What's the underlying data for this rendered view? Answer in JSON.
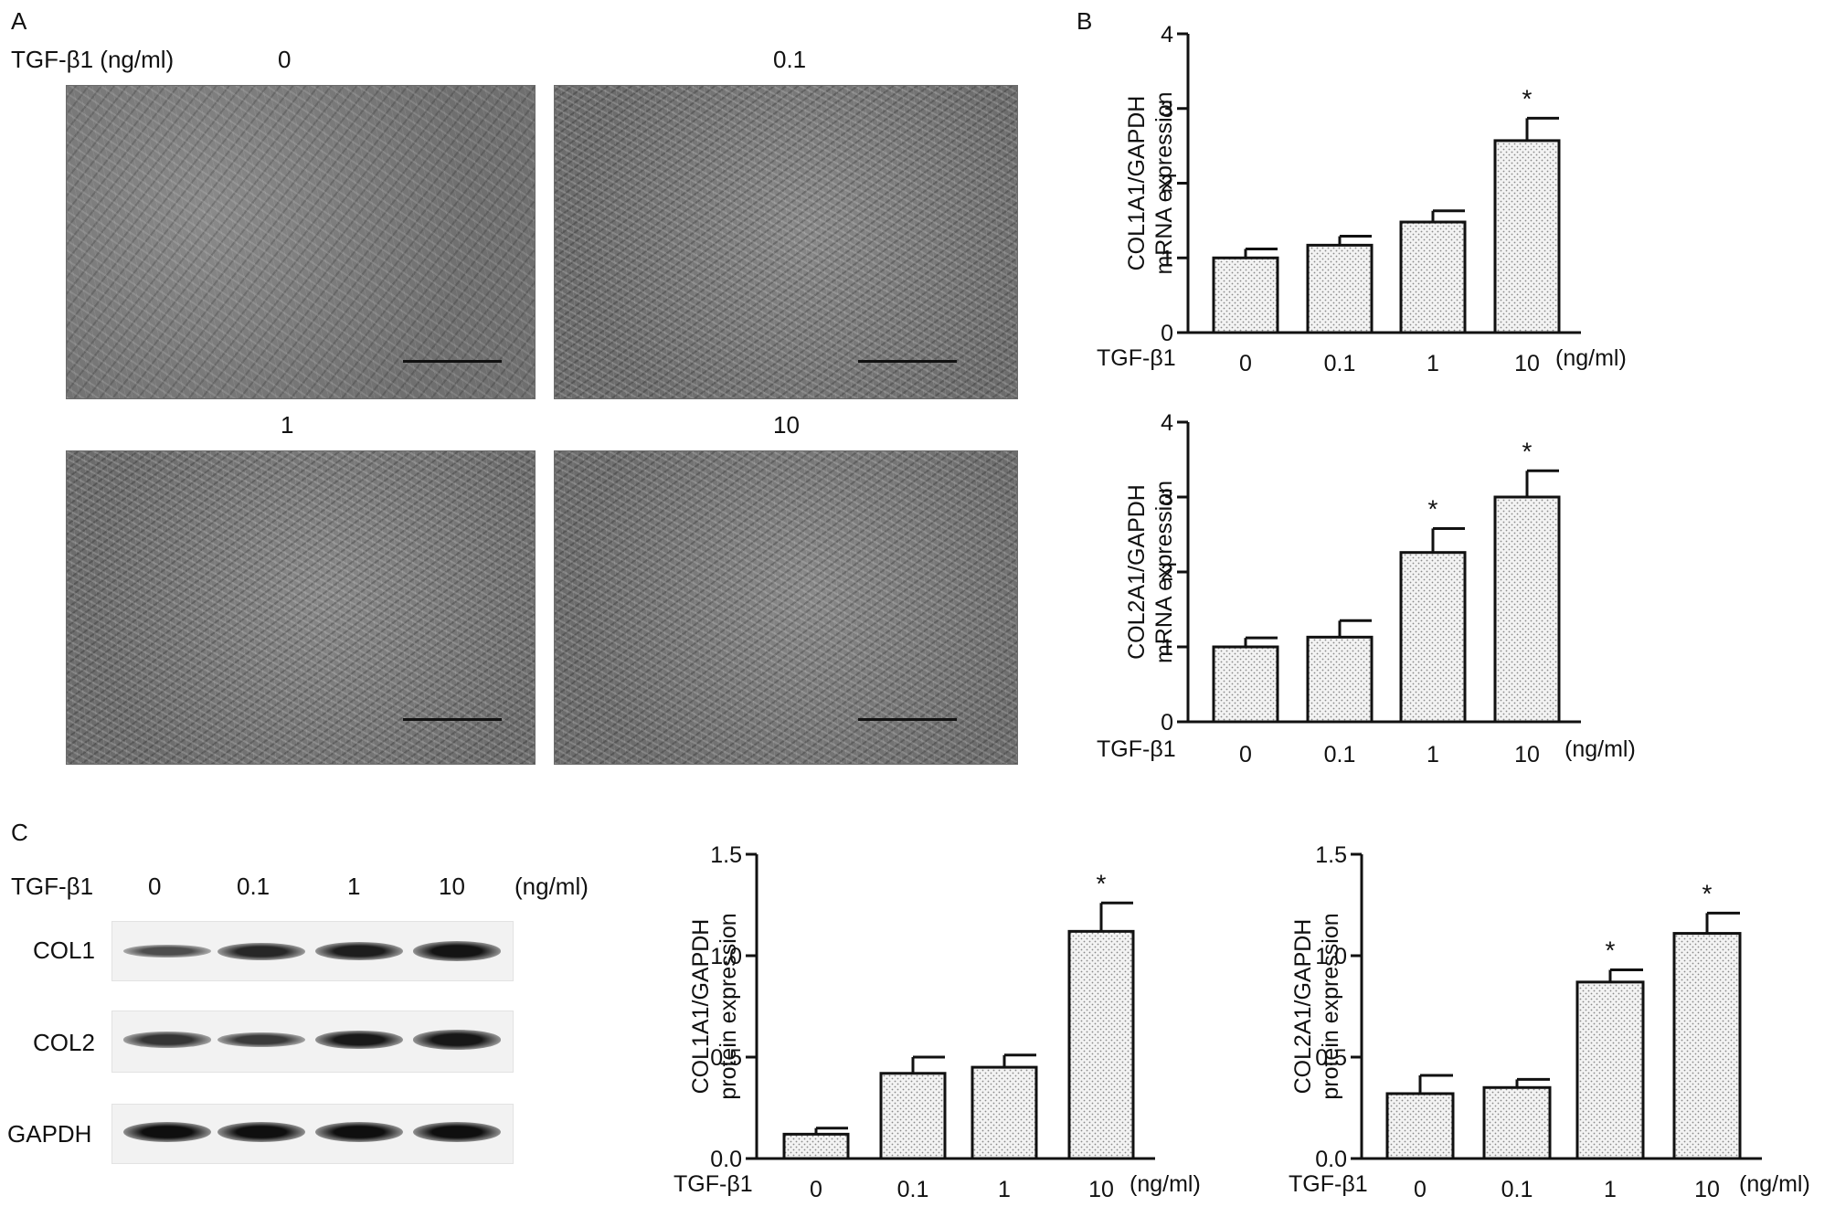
{
  "panelA": {
    "letter": "A",
    "treatment_label": "TGF-β1 (ng/ml)",
    "images": [
      {
        "label": "0"
      },
      {
        "label": "0.1"
      },
      {
        "label": "1"
      },
      {
        "label": "10"
      }
    ]
  },
  "panelB": {
    "letter": "B"
  },
  "panelC": {
    "letter": "C",
    "treatment_label": "TGF-β1",
    "doses": [
      "0",
      "0.1",
      "1",
      "10"
    ],
    "unit": "(ng/ml)",
    "rows": [
      {
        "name": "COL1",
        "intensities": [
          0.35,
          0.75,
          0.85,
          0.95
        ]
      },
      {
        "name": "COL2",
        "intensities": [
          0.6,
          0.55,
          0.9,
          0.92
        ]
      },
      {
        "name": "GAPDH",
        "intensities": [
          1.0,
          1.0,
          1.0,
          1.0
        ]
      }
    ]
  },
  "colors": {
    "bar_fill": "#f3f3f3",
    "bar_stroke": "#111111",
    "dots": "#8a8a8a"
  },
  "chart_data": [
    {
      "type": "bar",
      "panel": "B",
      "ylabel_lines": [
        "COL1A1/GAPDH",
        "mRNA expression"
      ],
      "group_label": "TGF-β1",
      "categories": [
        "0",
        "0.1",
        "1",
        "10"
      ],
      "unit_label": "(ng/ml)",
      "values": [
        1.0,
        1.17,
        1.48,
        2.57
      ],
      "errors": [
        0.12,
        0.12,
        0.15,
        0.3
      ],
      "significance": [
        "",
        "",
        "",
        "*"
      ],
      "ylim": [
        0,
        4
      ],
      "yticks": [
        "0",
        "1",
        "2",
        "3",
        "4"
      ]
    },
    {
      "type": "bar",
      "panel": "B",
      "ylabel_lines": [
        "COL2A1/GAPDH",
        "mRNA expression"
      ],
      "group_label": "TGF-β1",
      "categories": [
        "0",
        "0.1",
        "1",
        "10"
      ],
      "unit_label": "(ng/ml)",
      "values": [
        1.0,
        1.13,
        2.26,
        3.0
      ],
      "errors": [
        0.12,
        0.22,
        0.32,
        0.35
      ],
      "significance": [
        "",
        "",
        "*",
        "*"
      ],
      "ylim": [
        0,
        4
      ],
      "yticks": [
        "0",
        "1",
        "2",
        "3",
        "4"
      ]
    },
    {
      "type": "bar",
      "panel": "C",
      "ylabel_lines": [
        "COL1A1/GAPDH",
        "protein expression"
      ],
      "group_label": "TGF-β1",
      "categories": [
        "0",
        "0.1",
        "1",
        "10"
      ],
      "unit_label": "(ng/ml)",
      "values": [
        0.12,
        0.42,
        0.45,
        1.12
      ],
      "errors": [
        0.03,
        0.08,
        0.06,
        0.14
      ],
      "significance": [
        "",
        "",
        "",
        "*"
      ],
      "ylim": [
        0,
        1.5
      ],
      "yticks": [
        "0.0",
        "0.5",
        "1.0",
        "1.5"
      ]
    },
    {
      "type": "bar",
      "panel": "C",
      "ylabel_lines": [
        "COL2A1/GAPDH",
        "protein expression"
      ],
      "group_label": "TGF-β1",
      "categories": [
        "0",
        "0.1",
        "1",
        "10"
      ],
      "unit_label": "(ng/ml)",
      "values": [
        0.32,
        0.35,
        0.87,
        1.11
      ],
      "errors": [
        0.09,
        0.04,
        0.06,
        0.1
      ],
      "significance": [
        "",
        "",
        "*",
        "*"
      ],
      "ylim": [
        0,
        1.5
      ],
      "yticks": [
        "0.0",
        "0.5",
        "1.0",
        "1.5"
      ]
    }
  ]
}
